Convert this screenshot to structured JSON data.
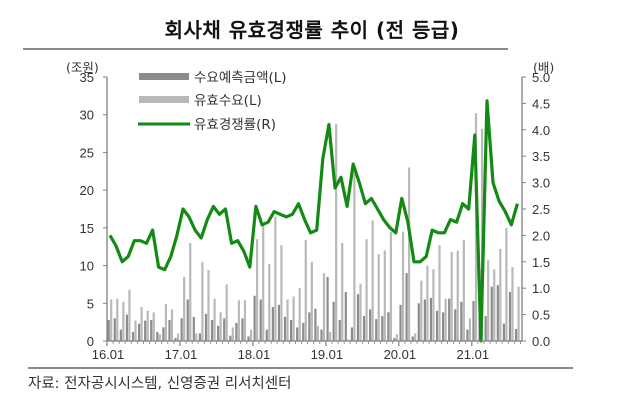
{
  "title": "회사채 유효경쟁률 추이 (전 등급)",
  "source": "자료: 전자공시시스템, 신영증권 리서치센터",
  "colors": {
    "forecast_bar": "#8c8c8c",
    "effective_bar": "#b9b9b9",
    "ratio_line": "#138a13",
    "axis": "#7f7f7f"
  },
  "chart_data": {
    "type": "bar+line",
    "title": "회사채 유효경쟁률 추이 (전 등급)",
    "left_axis": {
      "label": "(조원)",
      "ylim": [
        0,
        35
      ],
      "ticks": [
        "0",
        "5",
        "10",
        "15",
        "20",
        "25",
        "30",
        "35"
      ]
    },
    "right_axis": {
      "label": "(배)",
      "ylim": [
        0,
        5
      ],
      "ticks": [
        "0.0",
        "0.5",
        "1.0",
        "1.5",
        "2.0",
        "2.5",
        "3.0",
        "3.5",
        "4.0",
        "4.5",
        "5.0"
      ]
    },
    "x_tick_labels": [
      "16.01",
      "17.01",
      "18.01",
      "19.01",
      "20.01",
      "21.01"
    ],
    "legend": [
      {
        "name": "수요예측금액(L)",
        "type": "bar",
        "color": "#8c8c8c"
      },
      {
        "name": "유효수요(L)",
        "type": "bar",
        "color": "#b9b9b9"
      },
      {
        "name": "유효경쟁률(R)",
        "type": "line",
        "color": "#138a13"
      }
    ],
    "legend_position": "upper-left",
    "grid": false,
    "x": [
      "16.01",
      "16.02",
      "16.03",
      "16.04",
      "16.05",
      "16.06",
      "16.07",
      "16.08",
      "16.09",
      "16.10",
      "16.11",
      "16.12",
      "17.01",
      "17.02",
      "17.03",
      "17.04",
      "17.05",
      "17.06",
      "17.07",
      "17.08",
      "17.09",
      "17.10",
      "17.11",
      "17.12",
      "18.01",
      "18.02",
      "18.03",
      "18.04",
      "18.05",
      "18.06",
      "18.07",
      "18.08",
      "18.09",
      "18.10",
      "18.11",
      "18.12",
      "19.01",
      "19.02",
      "19.03",
      "19.04",
      "19.05",
      "19.06",
      "19.07",
      "19.08",
      "19.09",
      "19.10",
      "19.11",
      "19.12",
      "20.01",
      "20.02",
      "20.03",
      "20.04",
      "20.05",
      "20.06",
      "20.07",
      "20.08",
      "20.09",
      "20.10",
      "20.11",
      "20.12",
      "21.01",
      "21.02",
      "21.03",
      "21.04",
      "21.05",
      "21.06",
      "21.07",
      "21.08"
    ],
    "series": [
      {
        "name": "수요예측금액(L)",
        "axis": "left",
        "values": [
          2.8,
          3.0,
          1.5,
          3.5,
          1.2,
          2.3,
          2.7,
          2.8,
          1.2,
          1.8,
          2.8,
          0.4,
          3.0,
          5.5,
          3.2,
          1.0,
          3.6,
          2.8,
          2.0,
          3.0,
          0.7,
          2.4,
          3.0,
          0.6,
          6.0,
          5.5,
          1.5,
          4.5,
          4.8,
          3.2,
          2.8,
          1.8,
          2.4,
          3.8,
          4.3,
          1.5,
          8.5,
          5.2,
          2.8,
          6.5,
          1.8,
          6.2,
          3.3,
          4.2,
          2.9,
          3.3,
          3.8,
          0.4,
          4.8,
          9.0,
          0.6,
          5.0,
          5.5,
          5.7,
          4.0,
          3.8,
          5.6,
          4.2,
          5.2,
          1.5,
          5.3,
          9.5,
          3.3,
          7.2,
          7.4,
          2.3,
          6.5,
          1.6
        ]
      },
      {
        "name": "유효수요(L)",
        "axis": "left",
        "values": [
          5.5,
          5.6,
          5.2,
          6.8,
          2.7,
          4.5,
          4.0,
          3.8,
          0.9,
          4.9,
          4.2,
          1.0,
          8.5,
          13.0,
          1.0,
          10.5,
          9.4,
          5.6,
          3.8,
          7.5,
          1.8,
          5.4,
          5.4,
          1.5,
          13.5,
          15.5,
          10.2,
          16.5,
          12.7,
          5.5,
          5.9,
          7.0,
          13.4,
          10.5,
          2.0,
          9.0,
          1.2,
          28.8,
          13.0,
          0.2,
          22.2,
          7.6,
          13.5,
          16.0,
          11.5,
          12.0,
          14.5,
          0.9,
          14.5,
          23.0,
          1.0,
          8.0,
          10.0,
          9.5,
          12.7,
          5.6,
          11.8,
          12.0,
          13.4,
          3.0,
          30.2,
          28.1,
          10.7,
          9.5,
          12.2,
          15.0,
          9.8,
          7.2
        ]
      },
      {
        "name": "유효경쟁률(R)",
        "axis": "right",
        "values": [
          2.0,
          1.8,
          1.5,
          1.6,
          1.9,
          1.9,
          1.85,
          2.1,
          1.4,
          1.35,
          1.6,
          2.0,
          2.5,
          2.35,
          2.1,
          1.95,
          2.3,
          2.55,
          2.4,
          2.5,
          1.85,
          1.9,
          1.7,
          1.4,
          2.55,
          2.2,
          2.25,
          2.45,
          2.4,
          2.35,
          2.4,
          2.6,
          2.3,
          2.05,
          2.1,
          3.45,
          4.1,
          2.9,
          3.1,
          2.55,
          3.35,
          3.0,
          2.6,
          2.7,
          2.5,
          2.3,
          2.15,
          2.05,
          2.7,
          2.25,
          1.5,
          1.5,
          1.6,
          2.1,
          2.05,
          2.05,
          2.3,
          2.25,
          2.6,
          2.5,
          3.9,
          0.0,
          4.55,
          3.0,
          2.65,
          2.45,
          2.2,
          2.6
        ]
      }
    ]
  }
}
